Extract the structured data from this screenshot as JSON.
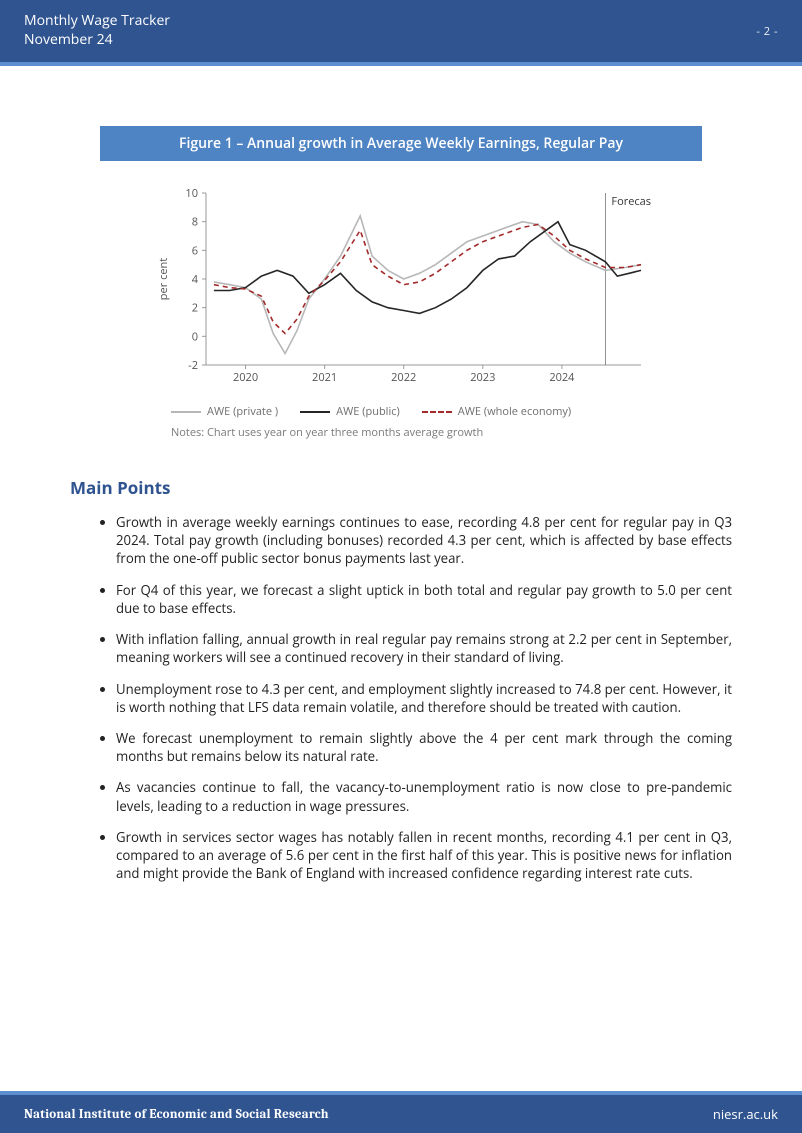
{
  "header": {
    "title_line1": "Monthly Wage Tracker",
    "title_line2": "November 24",
    "page_number": "- 2 -"
  },
  "figure": {
    "title": "Figure 1 – Annual growth in Average Weekly Earnings, Regular Pay",
    "note": "Notes: Chart uses  year on year three months average growth",
    "chart": {
      "type": "line",
      "ylabel": "per cent",
      "ylabel_fontsize": 11,
      "xlim": [
        2019.5,
        2025.0
      ],
      "ylim": [
        -2,
        10
      ],
      "ytick_step": 2,
      "yticks": [
        -2,
        0,
        2,
        4,
        6,
        8,
        10
      ],
      "xticks": [
        2020,
        2021,
        2022,
        2023,
        2024
      ],
      "xtick_labels": [
        "2020",
        "2021",
        "2022",
        "2023",
        "2024"
      ],
      "forecast_label": "Forecast",
      "forecast_x": 2024.55,
      "axis_color": "#9a9a9a",
      "tick_fontsize": 11,
      "tick_color": "#555555",
      "background_color": "#ffffff",
      "series": [
        {
          "name": "AWE (private )",
          "color": "#b7b7b7",
          "width": 1.6,
          "dash": "none",
          "points": [
            [
              2019.6,
              3.8
            ],
            [
              2019.8,
              3.6
            ],
            [
              2020.0,
              3.4
            ],
            [
              2020.2,
              2.6
            ],
            [
              2020.35,
              0.2
            ],
            [
              2020.5,
              -1.2
            ],
            [
              2020.65,
              0.4
            ],
            [
              2020.8,
              2.6
            ],
            [
              2021.0,
              4.0
            ],
            [
              2021.2,
              5.6
            ],
            [
              2021.45,
              8.4
            ],
            [
              2021.6,
              5.6
            ],
            [
              2021.8,
              4.6
            ],
            [
              2022.0,
              4.0
            ],
            [
              2022.2,
              4.4
            ],
            [
              2022.4,
              5.0
            ],
            [
              2022.6,
              5.8
            ],
            [
              2022.8,
              6.6
            ],
            [
              2023.0,
              7.0
            ],
            [
              2023.3,
              7.6
            ],
            [
              2023.5,
              8.0
            ],
            [
              2023.7,
              7.8
            ],
            [
              2023.9,
              6.6
            ],
            [
              2024.1,
              5.8
            ],
            [
              2024.3,
              5.2
            ],
            [
              2024.55,
              4.6
            ],
            [
              2024.8,
              4.8
            ],
            [
              2025.0,
              5.0
            ]
          ]
        },
        {
          "name": "AWE (public)",
          "color": "#262626",
          "width": 1.6,
          "dash": "none",
          "points": [
            [
              2019.6,
              3.2
            ],
            [
              2019.8,
              3.2
            ],
            [
              2020.0,
              3.4
            ],
            [
              2020.2,
              4.2
            ],
            [
              2020.4,
              4.6
            ],
            [
              2020.6,
              4.2
            ],
            [
              2020.8,
              3.0
            ],
            [
              2021.0,
              3.6
            ],
            [
              2021.2,
              4.4
            ],
            [
              2021.4,
              3.2
            ],
            [
              2021.6,
              2.4
            ],
            [
              2021.8,
              2.0
            ],
            [
              2022.0,
              1.8
            ],
            [
              2022.2,
              1.6
            ],
            [
              2022.4,
              2.0
            ],
            [
              2022.6,
              2.6
            ],
            [
              2022.8,
              3.4
            ],
            [
              2023.0,
              4.6
            ],
            [
              2023.2,
              5.4
            ],
            [
              2023.4,
              5.6
            ],
            [
              2023.6,
              6.6
            ],
            [
              2023.8,
              7.4
            ],
            [
              2023.95,
              8.0
            ],
            [
              2024.1,
              6.4
            ],
            [
              2024.3,
              6.0
            ],
            [
              2024.55,
              5.2
            ],
            [
              2024.7,
              4.2
            ],
            [
              2024.85,
              4.4
            ],
            [
              2025.0,
              4.6
            ]
          ]
        },
        {
          "name": "AWE (whole economy)",
          "color": "#a22a2a",
          "width": 1.6,
          "dash": "5,4",
          "points": [
            [
              2019.6,
              3.6
            ],
            [
              2019.8,
              3.4
            ],
            [
              2020.0,
              3.3
            ],
            [
              2020.2,
              2.8
            ],
            [
              2020.35,
              1.0
            ],
            [
              2020.5,
              0.2
            ],
            [
              2020.65,
              1.2
            ],
            [
              2020.8,
              2.8
            ],
            [
              2021.0,
              3.9
            ],
            [
              2021.2,
              5.2
            ],
            [
              2021.45,
              7.4
            ],
            [
              2021.6,
              5.0
            ],
            [
              2021.8,
              4.2
            ],
            [
              2022.0,
              3.6
            ],
            [
              2022.2,
              3.8
            ],
            [
              2022.4,
              4.4
            ],
            [
              2022.6,
              5.2
            ],
            [
              2022.8,
              6.0
            ],
            [
              2023.0,
              6.6
            ],
            [
              2023.3,
              7.2
            ],
            [
              2023.5,
              7.6
            ],
            [
              2023.7,
              7.8
            ],
            [
              2023.9,
              7.0
            ],
            [
              2024.1,
              6.0
            ],
            [
              2024.3,
              5.4
            ],
            [
              2024.55,
              4.8
            ],
            [
              2024.8,
              4.8
            ],
            [
              2025.0,
              5.0
            ]
          ]
        }
      ],
      "legend": {
        "fontsize": 11,
        "color": "#6d6d6d"
      }
    }
  },
  "main_points": {
    "heading": "Main Points",
    "heading_color": "#2f5490",
    "items": [
      "Growth in average weekly earnings continues to ease, recording 4.8 per cent for regular pay in Q3 2024. Total pay growth (including bonuses) recorded 4.3 per cent, which is affected by base effects from the one-off public sector bonus payments last year.",
      "For Q4 of this year, we forecast a slight uptick in both total and regular pay growth to 5.0 per cent due to base effects.",
      "With inflation falling, annual growth in real regular pay remains strong at 2.2 per cent in September, meaning workers will see a continued recovery in their standard of living.",
      "Unemployment rose to 4.3 per cent, and employment slightly increased to 74.8 per cent. However, it is worth nothing that LFS data remain volatile, and therefore should be treated with caution.",
      "We forecast unemployment to remain slightly above the 4 per cent mark through the coming months but remains below its natural rate.",
      "As vacancies continue to fall, the vacancy-to-unemployment ratio is now close to pre-pandemic levels, leading to a reduction in wage pressures.",
      "Growth in services sector wages has notably fallen in recent months, recording 4.1 per cent in Q3, compared to an average of 5.6 per cent in the first half of this year. This is positive news for inflation and might provide the Bank of England with increased confidence regarding interest rate cuts."
    ]
  },
  "footer": {
    "org": "National Institute of Economic and Social Research",
    "url": "niesr.ac.uk"
  },
  "colors": {
    "header_bg": "#2f5490",
    "accent": "#5b8fd1",
    "fig_title_bg": "#4f84c4",
    "text": "#222222"
  }
}
